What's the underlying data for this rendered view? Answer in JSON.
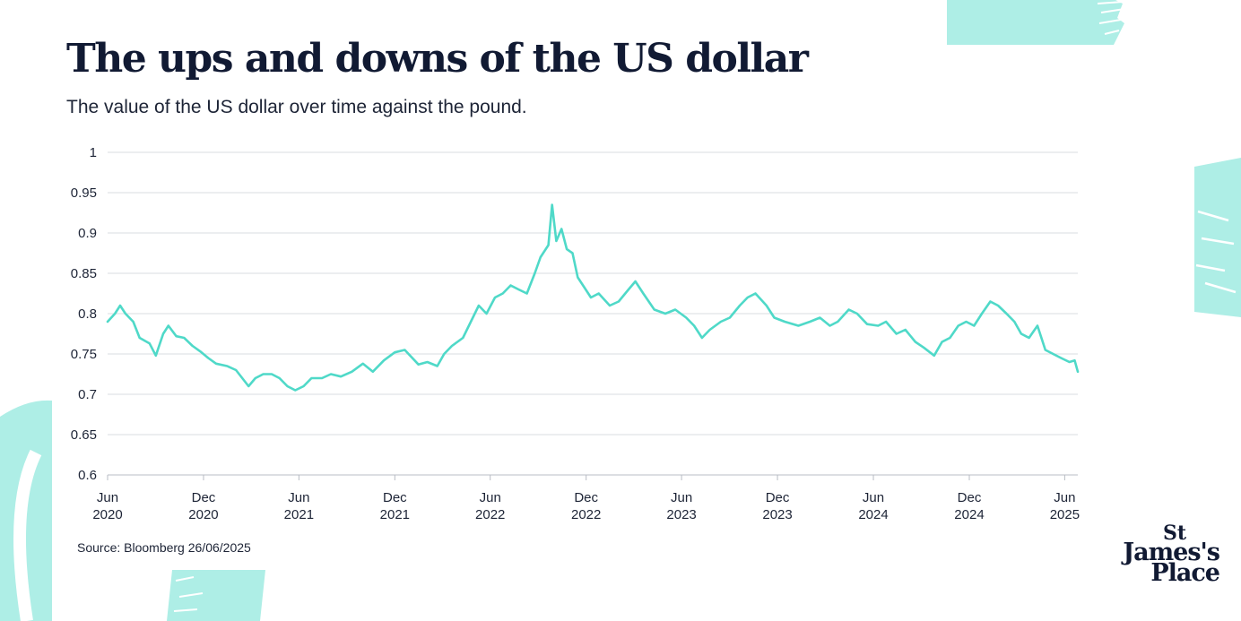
{
  "header": {
    "title": "The ups and downs of the US dollar",
    "subtitle": "The value of the US dollar over time against the pound."
  },
  "footer": {
    "source": "Source: Bloomberg 26/06/2025"
  },
  "logo": {
    "line1": "St",
    "line2": "James's",
    "line3": "Place"
  },
  "colors": {
    "line": "#4fd9c8",
    "grid": "#d9dce2",
    "axis_text": "#1d2436",
    "decoration": "#aeeee6"
  },
  "chart_data": {
    "type": "line",
    "title": "The ups and downs of the US dollar",
    "subtitle": "The value of the US dollar over time against the pound.",
    "xlabel": "",
    "ylabel": "",
    "ylim": [
      0.6,
      1
    ],
    "yticks": [
      "1",
      "0.95",
      "0.9",
      "0.85",
      "0.8",
      "0.75",
      "0.7",
      "0.65",
      "0.6"
    ],
    "xticks": [
      {
        "date": "2020-06",
        "label": [
          "Jun",
          "2020"
        ]
      },
      {
        "date": "2020-12",
        "label": [
          "Dec",
          "2020"
        ]
      },
      {
        "date": "2021-06",
        "label": [
          "Jun",
          "2021"
        ]
      },
      {
        "date": "2021-12",
        "label": [
          "Dec",
          "2021"
        ]
      },
      {
        "date": "2022-06",
        "label": [
          "Jun",
          "2022"
        ]
      },
      {
        "date": "2022-12",
        "label": [
          "Dec",
          "2022"
        ]
      },
      {
        "date": "2023-06",
        "label": [
          "Jun",
          "2023"
        ]
      },
      {
        "date": "2023-12",
        "label": [
          "Dec",
          "2023"
        ]
      },
      {
        "date": "2024-06",
        "label": [
          "Jun",
          "2024"
        ]
      },
      {
        "date": "2024-12",
        "label": [
          "Dec",
          "2024"
        ]
      },
      {
        "date": "2025-06",
        "label": [
          "Jun",
          "2025"
        ]
      }
    ],
    "xlim": [
      "2020-06-01",
      "2025-06-26"
    ],
    "grid": true,
    "series": [
      {
        "values": [
          [
            "2020-06-01",
            0.79
          ],
          [
            "2020-06-15",
            0.8
          ],
          [
            "2020-06-25",
            0.81
          ],
          [
            "2020-07-05",
            0.8
          ],
          [
            "2020-07-20",
            0.79
          ],
          [
            "2020-08-01",
            0.77
          ],
          [
            "2020-08-20",
            0.763
          ],
          [
            "2020-09-01",
            0.748
          ],
          [
            "2020-09-15",
            0.775
          ],
          [
            "2020-09-25",
            0.785
          ],
          [
            "2020-10-10",
            0.772
          ],
          [
            "2020-10-25",
            0.77
          ],
          [
            "2020-11-10",
            0.76
          ],
          [
            "2020-11-25",
            0.753
          ],
          [
            "2020-12-10",
            0.745
          ],
          [
            "2020-12-25",
            0.738
          ],
          [
            "2021-01-15",
            0.735
          ],
          [
            "2021-02-01",
            0.73
          ],
          [
            "2021-02-25",
            0.71
          ],
          [
            "2021-03-10",
            0.72
          ],
          [
            "2021-03-25",
            0.725
          ],
          [
            "2021-04-10",
            0.725
          ],
          [
            "2021-04-25",
            0.72
          ],
          [
            "2021-05-10",
            0.71
          ],
          [
            "2021-05-25",
            0.705
          ],
          [
            "2021-06-10",
            0.71
          ],
          [
            "2021-06-25",
            0.72
          ],
          [
            "2021-07-15",
            0.72
          ],
          [
            "2021-08-01",
            0.725
          ],
          [
            "2021-08-20",
            0.722
          ],
          [
            "2021-09-10",
            0.728
          ],
          [
            "2021-10-01",
            0.738
          ],
          [
            "2021-10-20",
            0.728
          ],
          [
            "2021-11-10",
            0.742
          ],
          [
            "2021-12-01",
            0.752
          ],
          [
            "2021-12-20",
            0.755
          ],
          [
            "2022-01-15",
            0.737
          ],
          [
            "2022-02-01",
            0.74
          ],
          [
            "2022-02-20",
            0.735
          ],
          [
            "2022-03-05",
            0.75
          ],
          [
            "2022-03-20",
            0.76
          ],
          [
            "2022-04-10",
            0.77
          ],
          [
            "2022-04-25",
            0.79
          ],
          [
            "2022-05-10",
            0.81
          ],
          [
            "2022-05-25",
            0.8
          ],
          [
            "2022-06-10",
            0.82
          ],
          [
            "2022-06-25",
            0.825
          ],
          [
            "2022-07-10",
            0.835
          ],
          [
            "2022-07-25",
            0.83
          ],
          [
            "2022-08-10",
            0.825
          ],
          [
            "2022-08-25",
            0.85
          ],
          [
            "2022-09-05",
            0.87
          ],
          [
            "2022-09-20",
            0.885
          ],
          [
            "2022-09-27",
            0.935
          ],
          [
            "2022-10-05",
            0.89
          ],
          [
            "2022-10-15",
            0.905
          ],
          [
            "2022-10-25",
            0.88
          ],
          [
            "2022-11-05",
            0.875
          ],
          [
            "2022-11-15",
            0.845
          ],
          [
            "2022-11-25",
            0.835
          ],
          [
            "2022-12-10",
            0.82
          ],
          [
            "2022-12-25",
            0.825
          ],
          [
            "2023-01-15",
            0.81
          ],
          [
            "2023-02-01",
            0.815
          ],
          [
            "2023-02-20",
            0.83
          ],
          [
            "2023-03-05",
            0.84
          ],
          [
            "2023-03-20",
            0.825
          ],
          [
            "2023-04-10",
            0.805
          ],
          [
            "2023-05-01",
            0.8
          ],
          [
            "2023-05-20",
            0.805
          ],
          [
            "2023-06-10",
            0.795
          ],
          [
            "2023-06-25",
            0.785
          ],
          [
            "2023-07-10",
            0.77
          ],
          [
            "2023-07-25",
            0.78
          ],
          [
            "2023-08-15",
            0.79
          ],
          [
            "2023-09-01",
            0.795
          ],
          [
            "2023-09-20",
            0.81
          ],
          [
            "2023-10-05",
            0.82
          ],
          [
            "2023-10-20",
            0.825
          ],
          [
            "2023-11-10",
            0.81
          ],
          [
            "2023-11-25",
            0.795
          ],
          [
            "2023-12-15",
            0.79
          ],
          [
            "2024-01-10",
            0.785
          ],
          [
            "2024-02-01",
            0.79
          ],
          [
            "2024-02-20",
            0.795
          ],
          [
            "2024-03-10",
            0.785
          ],
          [
            "2024-03-25",
            0.79
          ],
          [
            "2024-04-15",
            0.805
          ],
          [
            "2024-05-01",
            0.8
          ],
          [
            "2024-05-20",
            0.787
          ],
          [
            "2024-06-10",
            0.785
          ],
          [
            "2024-06-25",
            0.79
          ],
          [
            "2024-07-15",
            0.775
          ],
          [
            "2024-08-01",
            0.78
          ],
          [
            "2024-08-20",
            0.765
          ],
          [
            "2024-09-05",
            0.758
          ],
          [
            "2024-09-25",
            0.748
          ],
          [
            "2024-10-10",
            0.765
          ],
          [
            "2024-10-25",
            0.77
          ],
          [
            "2024-11-10",
            0.785
          ],
          [
            "2024-11-25",
            0.79
          ],
          [
            "2024-12-10",
            0.785
          ],
          [
            "2024-12-25",
            0.8
          ],
          [
            "2025-01-10",
            0.815
          ],
          [
            "2025-01-25",
            0.81
          ],
          [
            "2025-02-10",
            0.8
          ],
          [
            "2025-02-25",
            0.79
          ],
          [
            "2025-03-10",
            0.775
          ],
          [
            "2025-03-25",
            0.77
          ],
          [
            "2025-04-10",
            0.785
          ],
          [
            "2025-04-25",
            0.755
          ],
          [
            "2025-05-10",
            0.75
          ],
          [
            "2025-05-25",
            0.745
          ],
          [
            "2025-06-10",
            0.74
          ],
          [
            "2025-06-20",
            0.742
          ],
          [
            "2025-06-26",
            0.728
          ]
        ]
      }
    ]
  }
}
